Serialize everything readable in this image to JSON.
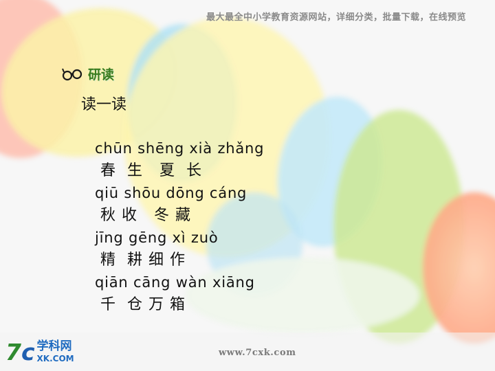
{
  "header": {
    "text": "最大最全中小学教育资源网站，详细分类，批量下载，在线预览"
  },
  "section": {
    "icon": "reading-glasses-icon",
    "title": "研读"
  },
  "subtitle": "读一读",
  "poem": [
    {
      "pinyin": "chūn shēng xià zhǎng",
      "hanzi": " 春  生   夏  长"
    },
    {
      "pinyin": "qiū shōu dōng cáng",
      "hanzi": " 秋 收   冬 藏"
    },
    {
      "pinyin": "jīng gēng xì zuò",
      "hanzi": " 精  耕 细 作"
    },
    {
      "pinyin": "qiān cāng wàn xiāng",
      "hanzi": " 千  仓 万 箱"
    }
  ],
  "logo": {
    "mark_seven": "7",
    "mark_c": "c",
    "cn": "学科网",
    "en": "XK.COM"
  },
  "footer": {
    "url": "www.7cxk.com"
  },
  "colors": {
    "title_green": "#3a7d1f",
    "logo_blue": "#1f6bc0",
    "logo_green": "#2f8a2f"
  }
}
